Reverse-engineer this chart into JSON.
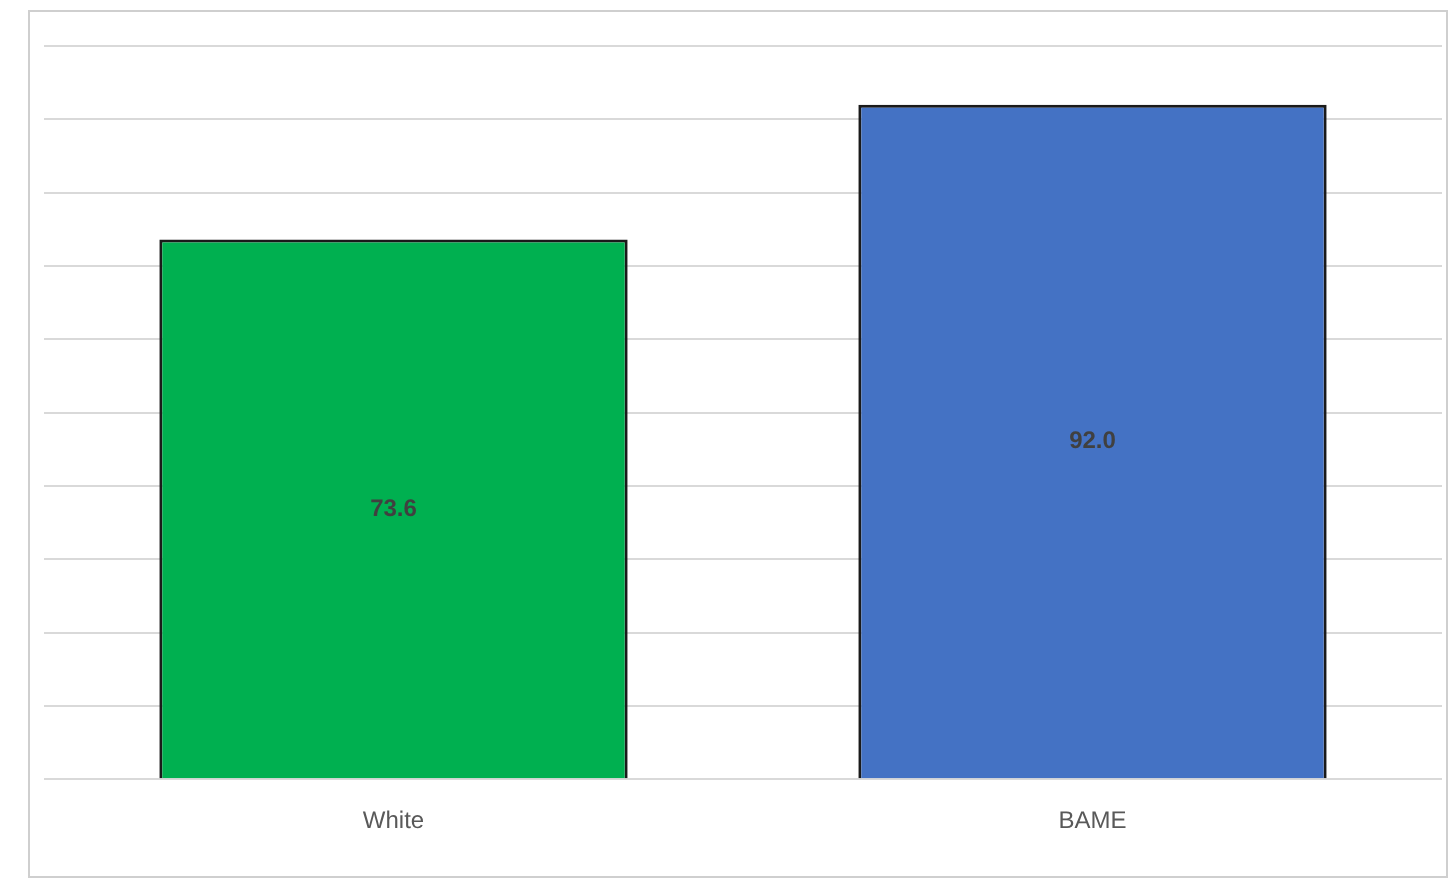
{
  "chart_data": {
    "type": "bar",
    "categories": [
      "White",
      "BAME"
    ],
    "values": [
      73.6,
      92.0
    ],
    "colors": [
      "#00b050",
      "#4472c4"
    ],
    "value_labels": [
      "73.6",
      "92.0"
    ],
    "grid": "y",
    "tick_labels": "x"
  }
}
